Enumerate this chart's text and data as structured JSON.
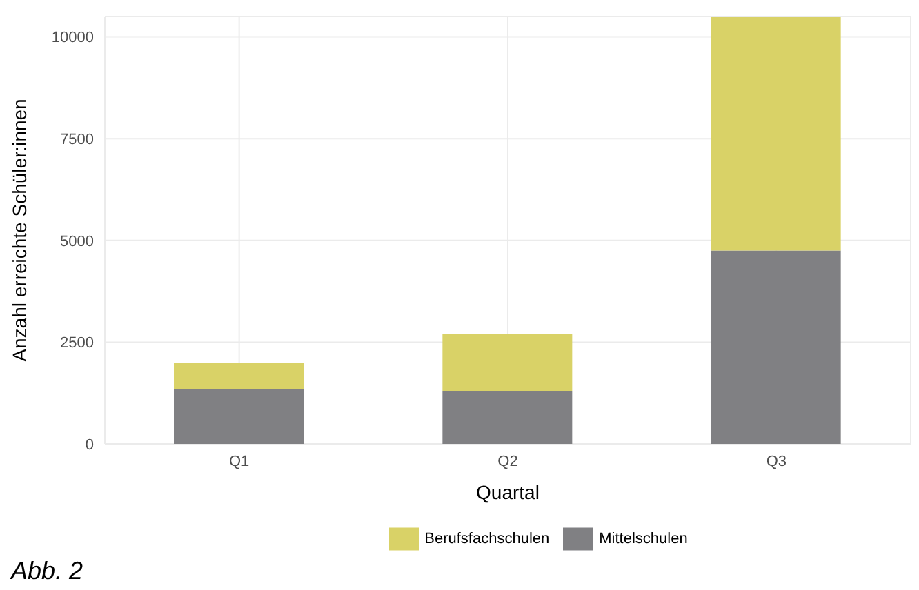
{
  "chart_data": {
    "type": "bar",
    "stacked": true,
    "xlabel": "Quartal",
    "ylabel": "Anzahl erreichte Schüler:innen",
    "categories": [
      "Q1",
      "Q2",
      "Q3"
    ],
    "series": [
      {
        "name": "Mittelschulen",
        "color": "#808083",
        "values": [
          1350,
          1290,
          4750
        ]
      },
      {
        "name": "Berufsfachschulen",
        "color": "#d9d267",
        "values": [
          640,
          1420,
          5750
        ]
      }
    ],
    "ylim": [
      0,
      10500
    ],
    "yticks": [
      0,
      2500,
      5000,
      7500,
      10000
    ],
    "grid": true,
    "legend": "bottom",
    "annotations": [
      "Abb. 2"
    ]
  }
}
